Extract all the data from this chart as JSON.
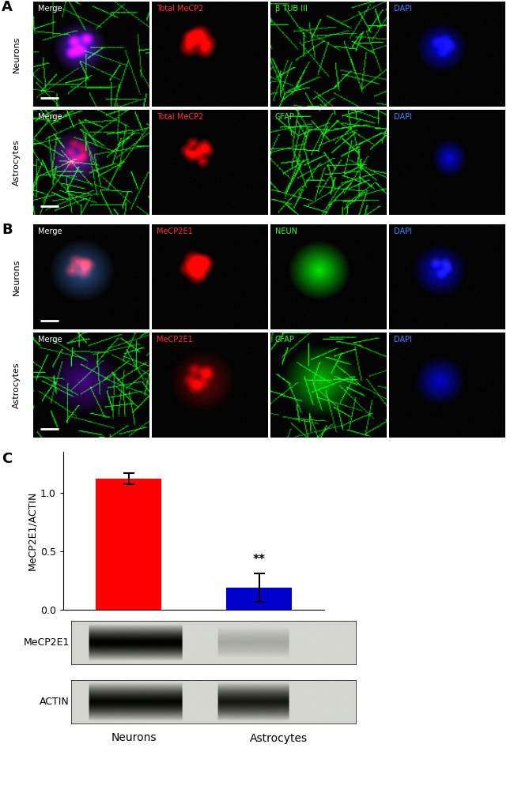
{
  "panel_A_labels": {
    "row1": [
      "Merge",
      "Total MeCP2",
      "β TUB III",
      "DAPI"
    ],
    "row2": [
      "Merge",
      "Total MeCP2",
      "GFAP",
      "DAPI"
    ]
  },
  "panel_B_labels": {
    "row1": [
      "Merge",
      "MeCP2E1",
      "NEUN",
      "DAPI"
    ],
    "row2": [
      "Merge",
      "MeCP2E1",
      "GFAP",
      "DAPI"
    ]
  },
  "side_labels_A": [
    "Neurons",
    "Astrocytes"
  ],
  "side_labels_B": [
    "Neurons",
    "Astrocytes"
  ],
  "panel_letter_A": "A",
  "panel_letter_B": "B",
  "panel_letter_C": "C",
  "bar_values": [
    1.12,
    0.19
  ],
  "bar_errors": [
    0.05,
    0.12
  ],
  "bar_colors": [
    "#ff0000",
    "#0000cc"
  ],
  "bar_categories": [
    "Neurons",
    "Astrocytes"
  ],
  "ylabel": "MeCP2E1/ACTIN",
  "ylim": [
    0,
    1.35
  ],
  "yticks": [
    0.0,
    0.5,
    1.0
  ],
  "significance": "**",
  "blot_labels": [
    "MeCP2E1",
    "ACTIN"
  ],
  "label_colors": {
    "Merge_white": "#ffffff",
    "Total_MeCP2_red": "#ff3333",
    "beta_TUB_green": "#33ff33",
    "DAPI_blue": "#4488ff",
    "GFAP_green": "#33ff33",
    "MeCP2E1_red": "#ff3333",
    "NEUN_green": "#33ff33"
  },
  "figure_bg": "#ffffff"
}
